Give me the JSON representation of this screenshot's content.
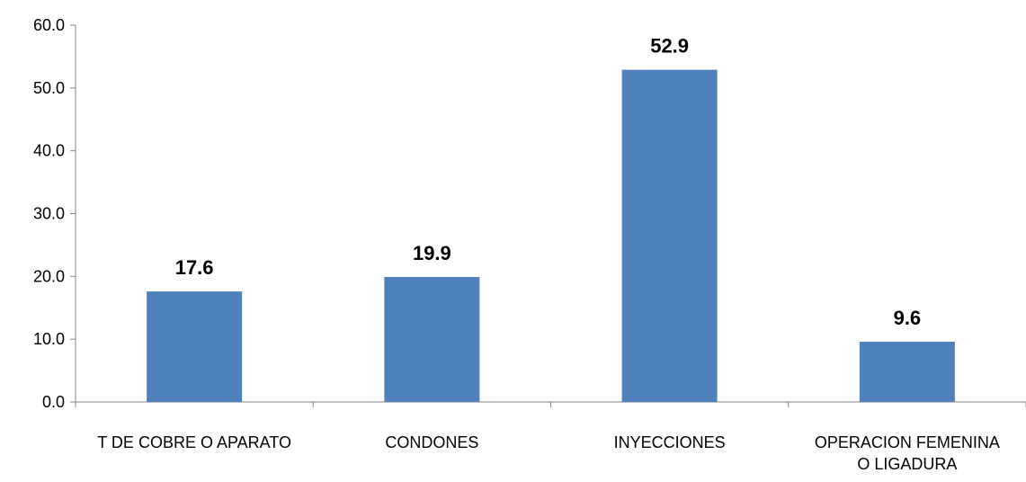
{
  "chart_data": {
    "type": "bar",
    "title": "",
    "xlabel": "",
    "ylabel": "",
    "categories": [
      [
        "T DE COBRE O APARATO"
      ],
      [
        "CONDONES"
      ],
      [
        "INYECCIONES"
      ],
      [
        "OPERACION FEMENINA",
        "O LIGADURA"
      ]
    ],
    "values": [
      17.6,
      19.9,
      52.9,
      9.6
    ],
    "data_labels": [
      "17.6",
      "19.9",
      "52.9",
      "9.6"
    ],
    "ylim": [
      0,
      60
    ],
    "yticks": [
      0,
      10,
      20,
      30,
      40,
      50,
      60
    ],
    "ytick_labels": [
      "0.0",
      "10.0",
      "20.0",
      "30.0",
      "40.0",
      "50.0",
      "60.0"
    ],
    "grid": false,
    "legend": "none",
    "colors": {
      "bar": "#4F81BD",
      "axis": "#868686",
      "text": "#000000"
    }
  }
}
